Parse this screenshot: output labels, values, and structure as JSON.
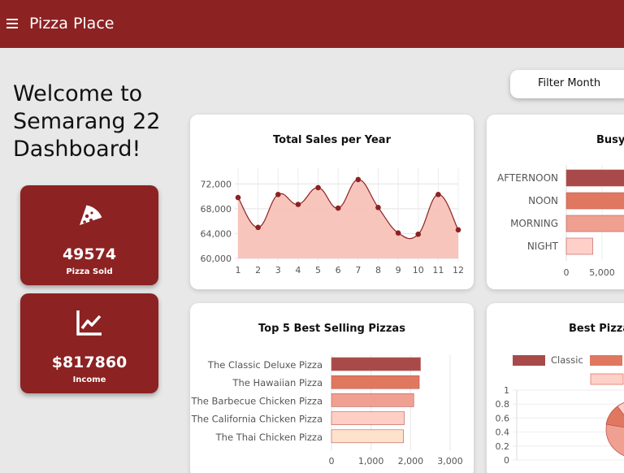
{
  "header": {
    "title": "Pizza Place"
  },
  "welcome": {
    "line1": "Welcome to",
    "line2": "Semarang 22",
    "line3": "Dashboard!"
  },
  "stats": [
    {
      "value": "49574",
      "label": "Pizza Sold",
      "icon": "pizza-slice-icon"
    },
    {
      "value": "$817860",
      "label": "Income",
      "icon": "line-chart-icon"
    }
  ],
  "filter": {
    "label": "Filter Month"
  },
  "colors": {
    "brand": "#8c2222",
    "background": "#e8e8e8"
  },
  "chart_data": [
    {
      "type": "area",
      "title": "Total Sales per Year",
      "x": [
        1,
        2,
        3,
        4,
        5,
        6,
        7,
        8,
        9,
        10,
        11,
        12
      ],
      "values": [
        69800,
        65000,
        70300,
        68700,
        71400,
        68100,
        72700,
        68200,
        64100,
        63900,
        70300,
        64600
      ],
      "ylim": [
        60000,
        74000
      ],
      "yticks": [
        "60,000",
        "64,000",
        "68,000",
        "72,000"
      ],
      "ytick_values": [
        60000,
        64000,
        68000,
        72000
      ],
      "xticks": [
        "1",
        "2",
        "3",
        "4",
        "5",
        "6",
        "7",
        "8",
        "9",
        "10",
        "11",
        "12"
      ],
      "fill": "#f7c2b8",
      "line": "#8c2222"
    },
    {
      "type": "bar",
      "title": "Busy",
      "categories": [
        "AFTERNOON",
        "NOON",
        "MORNING",
        "NIGHT"
      ],
      "values": [
        14000,
        12500,
        10500,
        3700
      ],
      "xticks": [
        "0",
        "5,000"
      ],
      "xtick_values": [
        0,
        5000
      ],
      "colors": [
        "#a94a4a",
        "#e07860",
        "#f0a090",
        "#ffd0c8"
      ]
    },
    {
      "type": "bar",
      "title": "Top 5 Best Selling Pizzas",
      "categories": [
        "The Classic Deluxe Pizza",
        "The Hawaiian Pizza",
        "The Barbecue Chicken Pizza",
        "The California Chicken Pizza",
        "The Thai Chicken Pizza"
      ],
      "values": [
        2250,
        2220,
        2080,
        1840,
        1820
      ],
      "xlim": [
        0,
        3000
      ],
      "xticks": [
        "0",
        "1,000",
        "2,000",
        "3,000"
      ],
      "xtick_values": [
        0,
        1000,
        2000,
        3000
      ],
      "colors": [
        "#a94a4a",
        "#e07860",
        "#f0a090",
        "#ffcfc5",
        "#ffe2cc"
      ]
    },
    {
      "type": "pie",
      "title": "Best Pizza",
      "legend": [
        "Classic"
      ],
      "yticks": [
        "0",
        "0.2",
        "0.4",
        "0.6",
        "0.8",
        "1"
      ],
      "ytick_values": [
        0,
        0.2,
        0.4,
        0.6,
        0.8,
        1
      ]
    }
  ]
}
